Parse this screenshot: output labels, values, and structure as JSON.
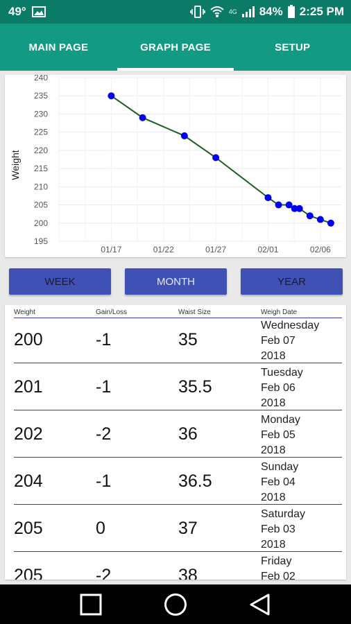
{
  "status_bar": {
    "temperature": "49°",
    "network_label": "4G",
    "battery": "84%",
    "time": "2:25 PM"
  },
  "tabs": [
    {
      "label": "MAIN PAGE",
      "active": false
    },
    {
      "label": "GRAPH PAGE",
      "active": true
    },
    {
      "label": "SETUP",
      "active": false
    }
  ],
  "range_buttons": {
    "week": "WEEK",
    "month": "MONTH",
    "year": "YEAR",
    "selected": "MONTH"
  },
  "chart_data": {
    "type": "line",
    "ylabel": "Weight",
    "xlabel": "",
    "title": "",
    "ylim": [
      195,
      240
    ],
    "y_ticks": [
      195,
      200,
      205,
      210,
      215,
      220,
      225,
      230,
      235,
      240
    ],
    "x_tick_labels": [
      "01/17",
      "01/22",
      "01/27",
      "02/01",
      "02/06"
    ],
    "x_ticks": [
      "2018-01-17",
      "2018-01-22",
      "2018-01-27",
      "2018-02-01",
      "2018-02-06"
    ],
    "xlim": [
      "2018-01-12",
      "2018-02-08"
    ],
    "grid": true,
    "line_color": "#1b5e20",
    "marker_color": "#0000ee",
    "series": [
      {
        "x": [
          "2018-01-17",
          "2018-01-20",
          "2018-01-24",
          "2018-01-27",
          "2018-02-01",
          "2018-02-02",
          "2018-02-03",
          "2018-02-03",
          "2018-02-04",
          "2018-02-05",
          "2018-02-06",
          "2018-02-07"
        ],
        "values": [
          235,
          229,
          224,
          218,
          207,
          205,
          205,
          204,
          204,
          202,
          201,
          200
        ]
      }
    ]
  },
  "table": {
    "headers": {
      "weight": "Weight",
      "gain": "Gain/Loss",
      "waist": "Waist Size",
      "date": "Weigh Date"
    },
    "rows": [
      {
        "weight": "200",
        "gain": "-1",
        "waist": "35",
        "day": "Wednesday",
        "date": "Feb 07",
        "year": "2018"
      },
      {
        "weight": "201",
        "gain": "-1",
        "waist": "35.5",
        "day": "Tuesday",
        "date": "Feb 06",
        "year": "2018"
      },
      {
        "weight": "202",
        "gain": "-2",
        "waist": "36",
        "day": "Monday",
        "date": "Feb 05",
        "year": "2018"
      },
      {
        "weight": "204",
        "gain": "-1",
        "waist": "36.5",
        "day": "Sunday",
        "date": "Feb 04",
        "year": "2018"
      },
      {
        "weight": "205",
        "gain": "0",
        "waist": "37",
        "day": "Saturday",
        "date": "Feb 03",
        "year": "2018"
      },
      {
        "weight": "205",
        "gain": "-2",
        "waist": "38",
        "day": "Friday",
        "date": "Feb 02",
        "year": ""
      }
    ]
  },
  "colors": {
    "status_bar": "#0b7a66",
    "tab_bar": "#129b82",
    "button": "#3f51b5"
  }
}
